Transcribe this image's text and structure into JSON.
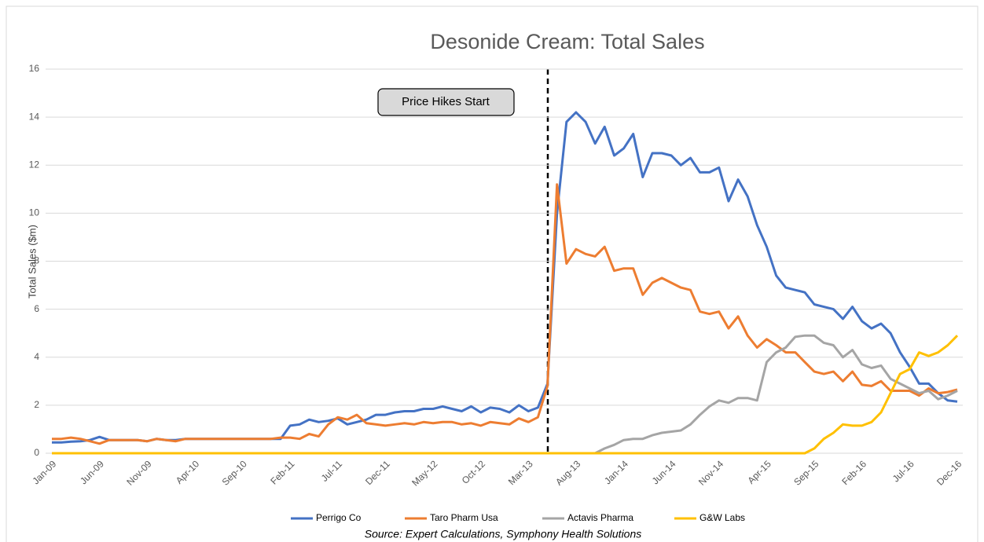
{
  "chart_data": {
    "type": "line",
    "title": "Desonide Cream: Total Sales",
    "y_label": "Total Sales ($m)",
    "annotation": "Price Hikes Start",
    "source": "Source: Expert Calculations, Symphony Health Solutions",
    "categories": [
      "Jan-09",
      null,
      null,
      null,
      null,
      "Jun-09",
      null,
      null,
      null,
      null,
      "Nov-09",
      null,
      null,
      null,
      null,
      "Apr-10",
      null,
      null,
      null,
      null,
      "Sep-10",
      null,
      null,
      null,
      null,
      "Feb-11",
      null,
      null,
      null,
      null,
      "Jul-11",
      null,
      null,
      null,
      null,
      "Dec-11",
      null,
      null,
      null,
      null,
      "May-12",
      null,
      null,
      null,
      null,
      "Oct-12",
      null,
      null,
      null,
      null,
      "Mar-13",
      null,
      null,
      null,
      null,
      "Aug-13",
      null,
      null,
      null,
      null,
      "Jan-14",
      null,
      null,
      null,
      null,
      "Jun-14",
      null,
      null,
      null,
      null,
      "Nov-14",
      null,
      null,
      null,
      null,
      "Apr-15",
      null,
      null,
      null,
      null,
      "Sep-15",
      null,
      null,
      null,
      null,
      "Feb-16",
      null,
      null,
      null,
      null,
      "Jul-16",
      null,
      null,
      null,
      null,
      "Dec-16"
    ],
    "ylim": [
      0,
      16
    ],
    "yticks": [
      0,
      2,
      4,
      6,
      8,
      10,
      12,
      14,
      16
    ],
    "grid": true,
    "legend": "bottom",
    "series": [
      {
        "name": "Perrigo Co",
        "color": "#4472c4",
        "values": [
          0.45,
          0.45,
          0.48,
          0.5,
          0.55,
          0.68,
          0.55,
          0.55,
          0.55,
          0.55,
          0.5,
          0.6,
          0.55,
          0.55,
          0.6,
          0.6,
          0.6,
          0.6,
          0.6,
          0.6,
          0.6,
          0.6,
          0.6,
          0.6,
          0.6,
          1.15,
          1.2,
          1.4,
          1.3,
          1.35,
          1.45,
          1.2,
          1.3,
          1.4,
          1.6,
          1.6,
          1.7,
          1.75,
          1.75,
          1.85,
          1.85,
          1.95,
          1.85,
          1.75,
          1.95,
          1.7,
          1.9,
          1.85,
          1.7,
          2.0,
          1.75,
          1.9,
          2.9,
          10.0,
          13.8,
          14.2,
          13.8,
          12.9,
          13.6,
          12.4,
          12.7,
          13.3,
          11.5,
          12.5,
          12.5,
          12.4,
          12.0,
          12.3,
          11.7,
          11.7,
          11.9,
          10.5,
          11.4,
          10.7,
          9.5,
          8.6,
          7.4,
          6.9,
          6.8,
          6.7,
          6.2,
          6.1,
          6.0,
          5.6,
          6.1,
          5.5,
          5.2,
          5.4,
          5.0,
          4.2,
          3.6,
          2.9,
          2.9,
          2.5,
          2.2,
          2.15
        ]
      },
      {
        "name": "Taro Pharm Usa",
        "color": "#ed7d31",
        "values": [
          0.6,
          0.6,
          0.65,
          0.6,
          0.5,
          0.4,
          0.55,
          0.55,
          0.55,
          0.55,
          0.5,
          0.6,
          0.55,
          0.5,
          0.6,
          0.6,
          0.6,
          0.6,
          0.6,
          0.6,
          0.6,
          0.6,
          0.6,
          0.6,
          0.65,
          0.65,
          0.6,
          0.8,
          0.7,
          1.2,
          1.5,
          1.4,
          1.6,
          1.25,
          1.2,
          1.15,
          1.2,
          1.25,
          1.2,
          1.3,
          1.25,
          1.3,
          1.3,
          1.2,
          1.25,
          1.15,
          1.3,
          1.25,
          1.2,
          1.45,
          1.3,
          1.5,
          2.8,
          11.2,
          7.9,
          8.5,
          8.3,
          8.2,
          8.6,
          7.6,
          7.7,
          7.7,
          6.6,
          7.1,
          7.3,
          7.1,
          6.9,
          6.8,
          5.9,
          5.8,
          5.9,
          5.2,
          5.7,
          4.9,
          4.4,
          4.75,
          4.5,
          4.2,
          4.2,
          3.8,
          3.4,
          3.3,
          3.4,
          3.0,
          3.4,
          2.85,
          2.8,
          3.0,
          2.6,
          2.6,
          2.6,
          2.4,
          2.7,
          2.5,
          2.55,
          2.65
        ]
      },
      {
        "name": "Actavis Pharma",
        "color": "#a5a5a5",
        "values": [
          0,
          0,
          0,
          0,
          0,
          0,
          0,
          0,
          0,
          0,
          0,
          0,
          0,
          0,
          0,
          0,
          0,
          0,
          0,
          0,
          0,
          0,
          0,
          0,
          0,
          0,
          0,
          0,
          0,
          0,
          0,
          0,
          0,
          0,
          0,
          0,
          0,
          0,
          0,
          0,
          0,
          0,
          0,
          0,
          0,
          0,
          0,
          0,
          0,
          0,
          0,
          0,
          0,
          0,
          0,
          0,
          0,
          0,
          0.2,
          0.35,
          0.55,
          0.6,
          0.6,
          0.75,
          0.85,
          0.9,
          0.95,
          1.2,
          1.6,
          1.95,
          2.2,
          2.1,
          2.3,
          2.3,
          2.2,
          3.8,
          4.2,
          4.4,
          4.85,
          4.9,
          4.9,
          4.6,
          4.5,
          4.0,
          4.3,
          3.7,
          3.55,
          3.65,
          3.1,
          2.9,
          2.7,
          2.5,
          2.6,
          2.25,
          2.4,
          2.6
        ]
      },
      {
        "name": "G&W Labs",
        "color": "#ffc000",
        "values": [
          0,
          0,
          0,
          0,
          0,
          0,
          0,
          0,
          0,
          0,
          0,
          0,
          0,
          0,
          0,
          0,
          0,
          0,
          0,
          0,
          0,
          0,
          0,
          0,
          0,
          0,
          0,
          0,
          0,
          0,
          0,
          0,
          0,
          0,
          0,
          0,
          0,
          0,
          0,
          0,
          0,
          0,
          0,
          0,
          0,
          0,
          0,
          0,
          0,
          0,
          0,
          0,
          0,
          0,
          0,
          0,
          0,
          0,
          0,
          0,
          0,
          0,
          0,
          0,
          0,
          0,
          0,
          0,
          0,
          0,
          0,
          0,
          0,
          0,
          0,
          0,
          0,
          0,
          0,
          0,
          0.2,
          0.6,
          0.85,
          1.2,
          1.15,
          1.15,
          1.3,
          1.7,
          2.5,
          3.3,
          3.5,
          4.2,
          4.05,
          4.2,
          4.5,
          4.9
        ]
      }
    ]
  }
}
